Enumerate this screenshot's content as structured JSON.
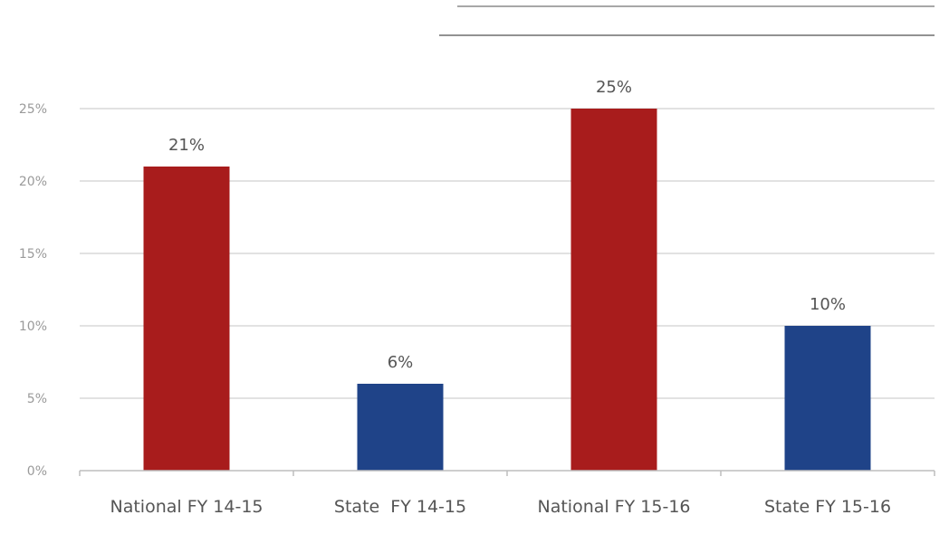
{
  "chart_data": {
    "type": "bar",
    "title": "",
    "xlabel": "",
    "ylabel": "",
    "categories": [
      "National FY 14-15",
      "State  FY 14-15",
      "National FY 15-16",
      "State FY 15-16"
    ],
    "values": [
      21,
      6,
      25,
      10
    ],
    "data_labels": [
      "21%",
      "6%",
      "25%",
      "10%"
    ],
    "bar_colors": [
      "#a81c1c",
      "#1f4388",
      "#a81c1c",
      "#1f4388"
    ],
    "y_ticks": [
      0,
      5,
      10,
      15,
      20,
      25
    ],
    "y_tick_labels": [
      "0%",
      "5%",
      "10%",
      "15%",
      "20%",
      "25%"
    ],
    "ylim": [
      0,
      25
    ],
    "grid": true,
    "legend": "none"
  }
}
